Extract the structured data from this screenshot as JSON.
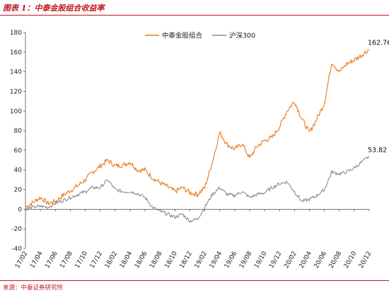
{
  "header": {
    "title": "图表 1：中泰金股组合收益率"
  },
  "footer": {
    "source": "来源：中泰证券研究所"
  },
  "colors": {
    "accent": "#c0161f",
    "series_portfolio": "#e8791a",
    "series_index": "#8c8c8c"
  },
  "chart_data": {
    "type": "line",
    "title": "",
    "xlabel": "",
    "ylabel": "",
    "ylim": [
      -40,
      180
    ],
    "y_ticks": [
      -40,
      -20,
      0,
      20,
      40,
      60,
      80,
      100,
      120,
      140,
      160,
      180
    ],
    "x_range": [
      "2017-02",
      "2020-12"
    ],
    "x_ticks": [
      "17/02",
      "17/04",
      "17/06",
      "17/08",
      "17/10",
      "17/12",
      "18/02",
      "18/04",
      "18/06",
      "18/08",
      "18/10",
      "18/12",
      "19/02",
      "19/04",
      "19/06",
      "19/08",
      "19/10",
      "19/12",
      "20/02",
      "20/04",
      "20/06",
      "20/08",
      "20/10",
      "20/12"
    ],
    "grid": false,
    "legend_position": "top-center",
    "series": [
      {
        "name": "中泰金股组合",
        "color": "#e8791a",
        "end_label": "162.76",
        "x": [
          "2017-02",
          "2017-03",
          "2017-04",
          "2017-05",
          "2017-06",
          "2017-07",
          "2017-08",
          "2017-09",
          "2017-10",
          "2017-11",
          "2017-12",
          "2018-01",
          "2018-02",
          "2018-03",
          "2018-04",
          "2018-05",
          "2018-06",
          "2018-07",
          "2018-08",
          "2018-09",
          "2018-10",
          "2018-11",
          "2018-12",
          "2019-01",
          "2019-02",
          "2019-03",
          "2019-04",
          "2019-05",
          "2019-06",
          "2019-07",
          "2019-08",
          "2019-09",
          "2019-10",
          "2019-11",
          "2019-12",
          "2020-01",
          "2020-02",
          "2020-03",
          "2020-04",
          "2020-05",
          "2020-06",
          "2020-07",
          "2020-08",
          "2020-09",
          "2020-10",
          "2020-11",
          "2020-12"
        ],
        "values": [
          2,
          7,
          12,
          6,
          8,
          14,
          19,
          24,
          30,
          38,
          44,
          50,
          44,
          45,
          48,
          40,
          40,
          32,
          27,
          23,
          18,
          22,
          17,
          15,
          22,
          48,
          78,
          66,
          61,
          67,
          52,
          64,
          70,
          73,
          84,
          100,
          110,
          92,
          78,
          92,
          108,
          150,
          140,
          148,
          152,
          157,
          163
        ]
      },
      {
        "name": "沪深300",
        "color": "#8c8c8c",
        "end_label": "53.82",
        "x": [
          "2017-02",
          "2017-03",
          "2017-04",
          "2017-05",
          "2017-06",
          "2017-07",
          "2017-08",
          "2017-09",
          "2017-10",
          "2017-11",
          "2017-12",
          "2018-01",
          "2018-02",
          "2018-03",
          "2018-04",
          "2018-05",
          "2018-06",
          "2018-07",
          "2018-08",
          "2018-09",
          "2018-10",
          "2018-11",
          "2018-12",
          "2019-01",
          "2019-02",
          "2019-03",
          "2019-04",
          "2019-05",
          "2019-06",
          "2019-07",
          "2019-08",
          "2019-09",
          "2019-10",
          "2019-11",
          "2019-12",
          "2020-01",
          "2020-02",
          "2020-03",
          "2020-04",
          "2020-05",
          "2020-06",
          "2020-07",
          "2020-08",
          "2020-09",
          "2020-10",
          "2020-11",
          "2020-12"
        ],
        "values": [
          0,
          2,
          3,
          2,
          6,
          9,
          12,
          15,
          18,
          22,
          22,
          30,
          20,
          18,
          18,
          16,
          12,
          2,
          -2,
          -5,
          -8,
          -5,
          -12,
          -10,
          2,
          15,
          22,
          15,
          14,
          18,
          12,
          15,
          17,
          22,
          26,
          28,
          18,
          8,
          10,
          14,
          20,
          38,
          36,
          38,
          42,
          48,
          54
        ]
      }
    ]
  }
}
